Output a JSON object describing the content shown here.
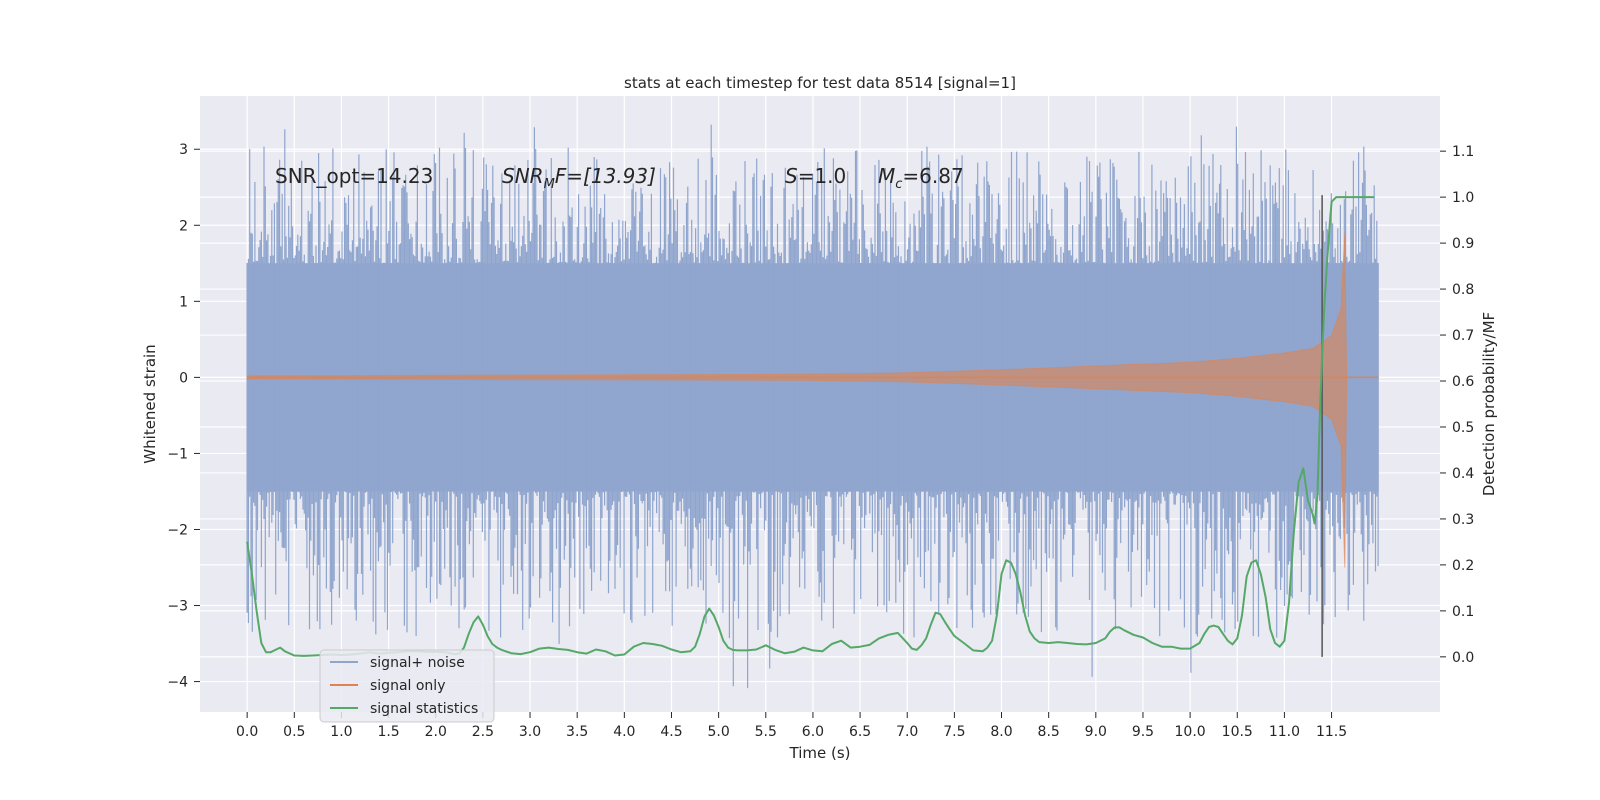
{
  "chart_data": {
    "type": "line",
    "title": "stats at each timestep for test data 8514 [signal=1]",
    "xlabel": "Time (s)",
    "ylabel": "Whitened strain",
    "y2label": "Detection probability/MF",
    "xlim": [
      -0.5,
      12.65
    ],
    "ylim": [
      -4.4,
      3.7
    ],
    "y2lim": [
      -0.12,
      1.22
    ],
    "x_ticks": [
      0.0,
      0.5,
      1.0,
      1.5,
      2.0,
      2.5,
      3.0,
      3.5,
      4.0,
      4.5,
      5.0,
      5.5,
      6.0,
      6.5,
      7.0,
      7.5,
      8.0,
      8.5,
      9.0,
      9.5,
      10.0,
      10.5,
      11.0,
      11.5
    ],
    "x_tick_labels": [
      "0.0",
      "0.5",
      "1.0",
      "1.5",
      "2.0",
      "2.5",
      "3.0",
      "3.5",
      "4.0",
      "4.5",
      "5.0",
      "5.5",
      "6.0",
      "6.5",
      "7.0",
      "7.5",
      "8.0",
      "8.5",
      "9.0",
      "9.5",
      "10.0",
      "10.5",
      "11.0",
      "11.5"
    ],
    "y_ticks": [
      -4,
      -3,
      -2,
      -1,
      0,
      1,
      2,
      3
    ],
    "y_tick_labels": [
      "−4",
      "−3",
      "−2",
      "−1",
      "0",
      "1",
      "2",
      "3"
    ],
    "y2_ticks": [
      0.0,
      0.1,
      0.2,
      0.3,
      0.4,
      0.5,
      0.6,
      0.7,
      0.8,
      0.9,
      1.0,
      1.1
    ],
    "y2_tick_labels": [
      "0.0",
      "0.1",
      "0.2",
      "0.3",
      "0.4",
      "0.5",
      "0.6",
      "0.7",
      "0.8",
      "0.9",
      "1.0",
      "1.1"
    ],
    "grid": true,
    "legend_position": "lower-left",
    "annotations": {
      "snr_opt": "SNR_opt=14.23",
      "snr_mf_name": "SNR",
      "snr_mf_sub": "M",
      "snr_mf_rest": "F=[13.93]",
      "s_name": "S",
      "s_value": "=1.0",
      "mc_name": "M",
      "mc_sub": "c",
      "mc_value": "=6.87"
    },
    "vline_x": 11.4,
    "series": [
      {
        "name": "signal+ noise",
        "color": "#8fa5cd",
        "kind": "noise-band",
        "x_range": [
          0.0,
          12.0
        ],
        "envelope": {
          "core_low": -1.5,
          "core_high": 1.5,
          "peak_max": 3.35,
          "peak_min": -4.1
        }
      },
      {
        "name": "signal only",
        "color": "#dd8452",
        "kind": "chirp",
        "x_range": [
          0.0,
          12.0
        ],
        "amplitude": [
          [
            0.0,
            0.02
          ],
          [
            6.0,
            0.04
          ],
          [
            7.0,
            0.06
          ],
          [
            8.0,
            0.1
          ],
          [
            9.0,
            0.15
          ],
          [
            10.0,
            0.2
          ],
          [
            10.5,
            0.25
          ],
          [
            11.0,
            0.32
          ],
          [
            11.3,
            0.38
          ],
          [
            11.5,
            0.55
          ],
          [
            11.6,
            0.9
          ],
          [
            11.64,
            1.9
          ],
          [
            11.66,
            0.0
          ]
        ]
      },
      {
        "name": "signal statistics",
        "color": "#55a868",
        "axis": "right",
        "x": [
          0.0,
          0.05,
          0.1,
          0.15,
          0.2,
          0.25,
          0.3,
          0.35,
          0.4,
          0.5,
          0.6,
          0.7,
          0.8,
          0.9,
          1.0,
          1.1,
          1.2,
          1.3,
          1.4,
          1.5,
          1.6,
          1.7,
          1.8,
          1.9,
          2.0,
          2.1,
          2.2,
          2.25,
          2.3,
          2.35,
          2.4,
          2.45,
          2.5,
          2.55,
          2.6,
          2.65,
          2.7,
          2.8,
          2.9,
          3.0,
          3.1,
          3.2,
          3.3,
          3.4,
          3.5,
          3.6,
          3.7,
          3.8,
          3.9,
          4.0,
          4.1,
          4.2,
          4.3,
          4.4,
          4.5,
          4.6,
          4.7,
          4.75,
          4.8,
          4.85,
          4.9,
          4.95,
          5.0,
          5.05,
          5.1,
          5.15,
          5.2,
          5.25,
          5.3,
          5.4,
          5.5,
          5.6,
          5.7,
          5.8,
          5.9,
          6.0,
          6.1,
          6.2,
          6.3,
          6.4,
          6.5,
          6.6,
          6.7,
          6.8,
          6.9,
          7.0,
          7.05,
          7.1,
          7.15,
          7.2,
          7.25,
          7.3,
          7.35,
          7.4,
          7.45,
          7.5,
          7.6,
          7.7,
          7.8,
          7.85,
          7.9,
          7.95,
          8.0,
          8.05,
          8.1,
          8.15,
          8.2,
          8.25,
          8.3,
          8.35,
          8.4,
          8.5,
          8.6,
          8.7,
          8.8,
          8.9,
          9.0,
          9.1,
          9.15,
          9.2,
          9.25,
          9.3,
          9.4,
          9.5,
          9.6,
          9.7,
          9.8,
          9.9,
          10.0,
          10.1,
          10.15,
          10.2,
          10.25,
          10.3,
          10.35,
          10.4,
          10.45,
          10.5,
          10.55,
          10.6,
          10.65,
          10.7,
          10.75,
          10.8,
          10.85,
          10.9,
          10.95,
          11.0,
          11.05,
          11.1,
          11.15,
          11.2,
          11.25,
          11.3,
          11.32,
          11.35,
          11.38,
          11.42,
          11.45,
          11.48,
          11.5,
          11.55,
          11.6,
          11.65,
          11.7,
          11.75,
          11.8,
          11.85,
          11.9,
          11.95
        ],
        "y": [
          0.25,
          0.18,
          0.1,
          0.03,
          0.01,
          0.01,
          0.015,
          0.02,
          0.012,
          0.003,
          0.002,
          0.003,
          0.004,
          0.005,
          0.004,
          0.005,
          0.007,
          0.01,
          0.007,
          0.009,
          0.01,
          0.012,
          0.012,
          0.011,
          0.011,
          0.01,
          0.006,
          0.007,
          0.02,
          0.05,
          0.075,
          0.088,
          0.07,
          0.045,
          0.028,
          0.02,
          0.015,
          0.008,
          0.006,
          0.01,
          0.018,
          0.02,
          0.017,
          0.015,
          0.01,
          0.007,
          0.016,
          0.012,
          0.003,
          0.005,
          0.022,
          0.03,
          0.028,
          0.024,
          0.016,
          0.01,
          0.012,
          0.022,
          0.05,
          0.088,
          0.105,
          0.09,
          0.065,
          0.035,
          0.02,
          0.015,
          0.014,
          0.014,
          0.014,
          0.016,
          0.025,
          0.015,
          0.008,
          0.011,
          0.02,
          0.014,
          0.012,
          0.028,
          0.035,
          0.02,
          0.022,
          0.026,
          0.04,
          0.048,
          0.052,
          0.03,
          0.018,
          0.015,
          0.025,
          0.04,
          0.07,
          0.096,
          0.093,
          0.076,
          0.06,
          0.045,
          0.03,
          0.014,
          0.012,
          0.02,
          0.035,
          0.09,
          0.18,
          0.21,
          0.205,
          0.18,
          0.14,
          0.09,
          0.055,
          0.04,
          0.032,
          0.03,
          0.032,
          0.03,
          0.028,
          0.027,
          0.03,
          0.04,
          0.055,
          0.064,
          0.064,
          0.058,
          0.048,
          0.042,
          0.03,
          0.022,
          0.022,
          0.018,
          0.018,
          0.03,
          0.05,
          0.065,
          0.068,
          0.065,
          0.05,
          0.035,
          0.027,
          0.04,
          0.09,
          0.175,
          0.205,
          0.21,
          0.18,
          0.13,
          0.06,
          0.03,
          0.022,
          0.035,
          0.12,
          0.27,
          0.38,
          0.41,
          0.34,
          0.31,
          0.29,
          0.35,
          0.55,
          0.75,
          0.85,
          0.94,
          0.99,
          1.0,
          1.0,
          1.0,
          1.0,
          1.0,
          1.0,
          1.0,
          1.0,
          1.0
        ]
      }
    ]
  }
}
